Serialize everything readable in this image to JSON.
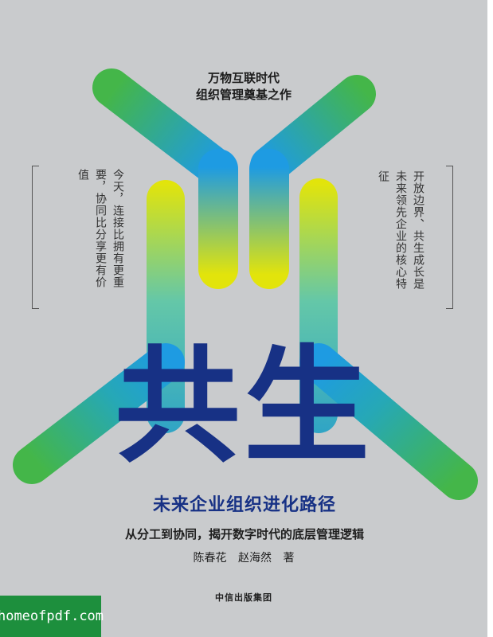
{
  "cover": {
    "tagline_line1": "万物互联时代",
    "tagline_line2": "组织管理奠基之作",
    "left_quote": "今天，连接比拥有更重要，协同比分享更有价值",
    "right_quote": "开放边界、共生成长是未来领先企业的核心特征",
    "title": "共生",
    "subtitle": "未来企业组织进化路径",
    "tagline2": "从分工到协同，揭开数字时代的底层管理逻辑",
    "author1": "陈春花",
    "author2": "赵海然",
    "author_role": "著",
    "publisher": "中信出版集团",
    "colors": {
      "background": "#c9cbcd",
      "title": "#173185",
      "green": "#3fb54a",
      "blue": "#1e9ae0",
      "yellow": "#e2e40b"
    }
  },
  "watermark": {
    "text": "homeofpdf.com"
  }
}
